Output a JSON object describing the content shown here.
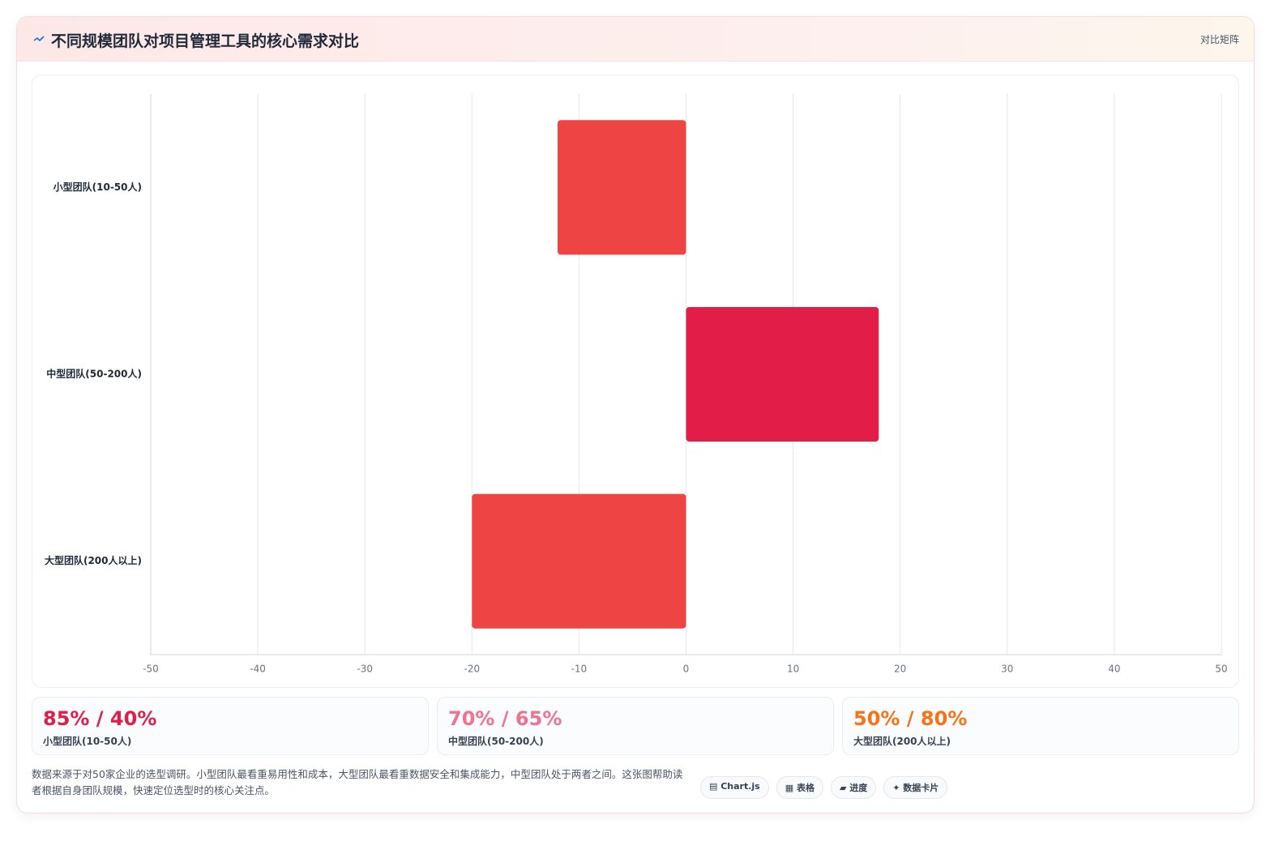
{
  "header": {
    "title": "不同规模团队对项目管理工具的核心需求对比",
    "badge": "对比矩阵"
  },
  "chart_data": {
    "type": "hbar",
    "categories": [
      "小型团队(10-50人)",
      "中型团队(50-200人)",
      "大型团队(200人以上)"
    ],
    "values": [
      -12,
      18,
      -20
    ],
    "colors": [
      "#ef4444",
      "#e11d48",
      "#ef4444"
    ],
    "xlim": [
      -50,
      50
    ],
    "xticks": [
      -50,
      -40,
      -30,
      -20,
      -10,
      0,
      10,
      20,
      30,
      40,
      50
    ],
    "grid": true
  },
  "cards": [
    {
      "value": "85% / 40%",
      "label": "小型团队(10-50人)",
      "color": "#e11d48"
    },
    {
      "value": "70% / 65%",
      "label": "中型团队(50-200人)",
      "color": "#f0728f"
    },
    {
      "value": "50% / 80%",
      "label": "大型团队(200人以上)",
      "color": "#f97316"
    }
  ],
  "footer": {
    "note": "数据来源于对50家企业的选型调研。小型团队最看重易用性和成本，大型团队最看重数据安全和集成能力，中型团队处于两者之间。这张图帮助读者根据自身团队规模，快速定位选型时的核心关注点。",
    "tags": [
      "▤ Chart.js",
      "▦ 表格",
      "▰ 进度",
      "✦ 数据卡片"
    ]
  }
}
